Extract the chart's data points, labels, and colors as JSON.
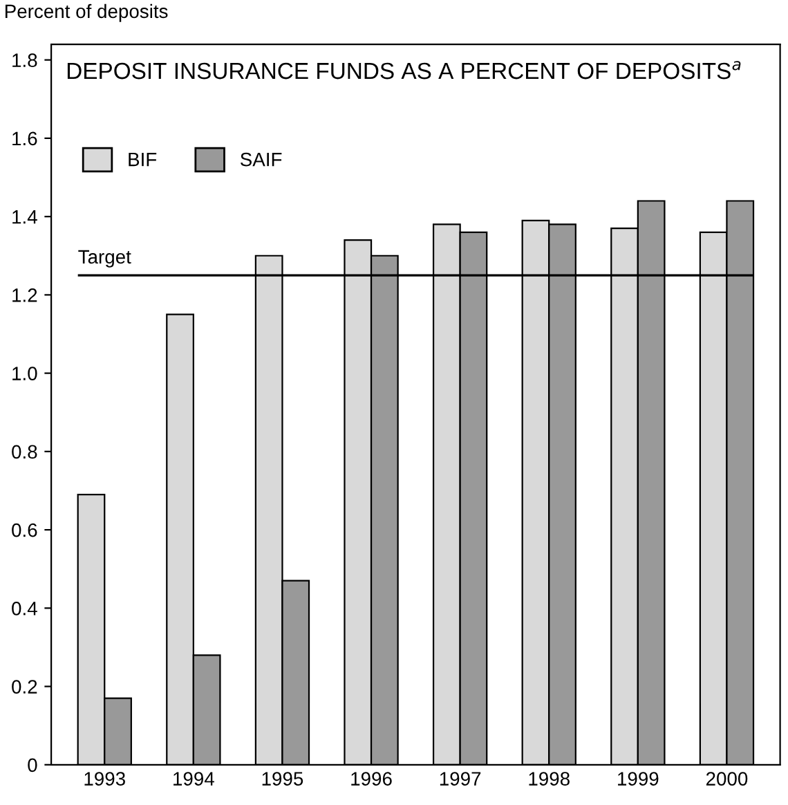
{
  "chart_data": {
    "type": "bar",
    "title": "DEPOSIT INSURANCE FUNDS AS A PERCENT OF DEPOSITS$^{a}$",
    "ylabel": "Percent of deposits",
    "categories": [
      "1993",
      "1994",
      "1995",
      "1996",
      "1997",
      "1998",
      "1999",
      "2000"
    ],
    "series": [
      {
        "name": "BIF",
        "color": "#d9d9d9",
        "values": [
          0.69,
          1.15,
          1.3,
          1.34,
          1.38,
          1.39,
          1.37,
          1.36
        ]
      },
      {
        "name": "SAIF",
        "color": "#999999",
        "values": [
          0.17,
          0.28,
          0.47,
          1.3,
          1.36,
          1.38,
          1.44,
          1.44
        ]
      }
    ],
    "ylim": [
      0,
      1.84
    ],
    "yticks": [
      0,
      0.2,
      0.4,
      0.6,
      0.8,
      {
        "value": 1.0,
        "label": "1.0"
      },
      1.2,
      1.4,
      1.6,
      1.8
    ],
    "ref_lines": [
      {
        "axis": "y",
        "value": 1.25,
        "label": "Target",
        "color": "#000000"
      }
    ],
    "legend": "top left",
    "grid": false
  }
}
